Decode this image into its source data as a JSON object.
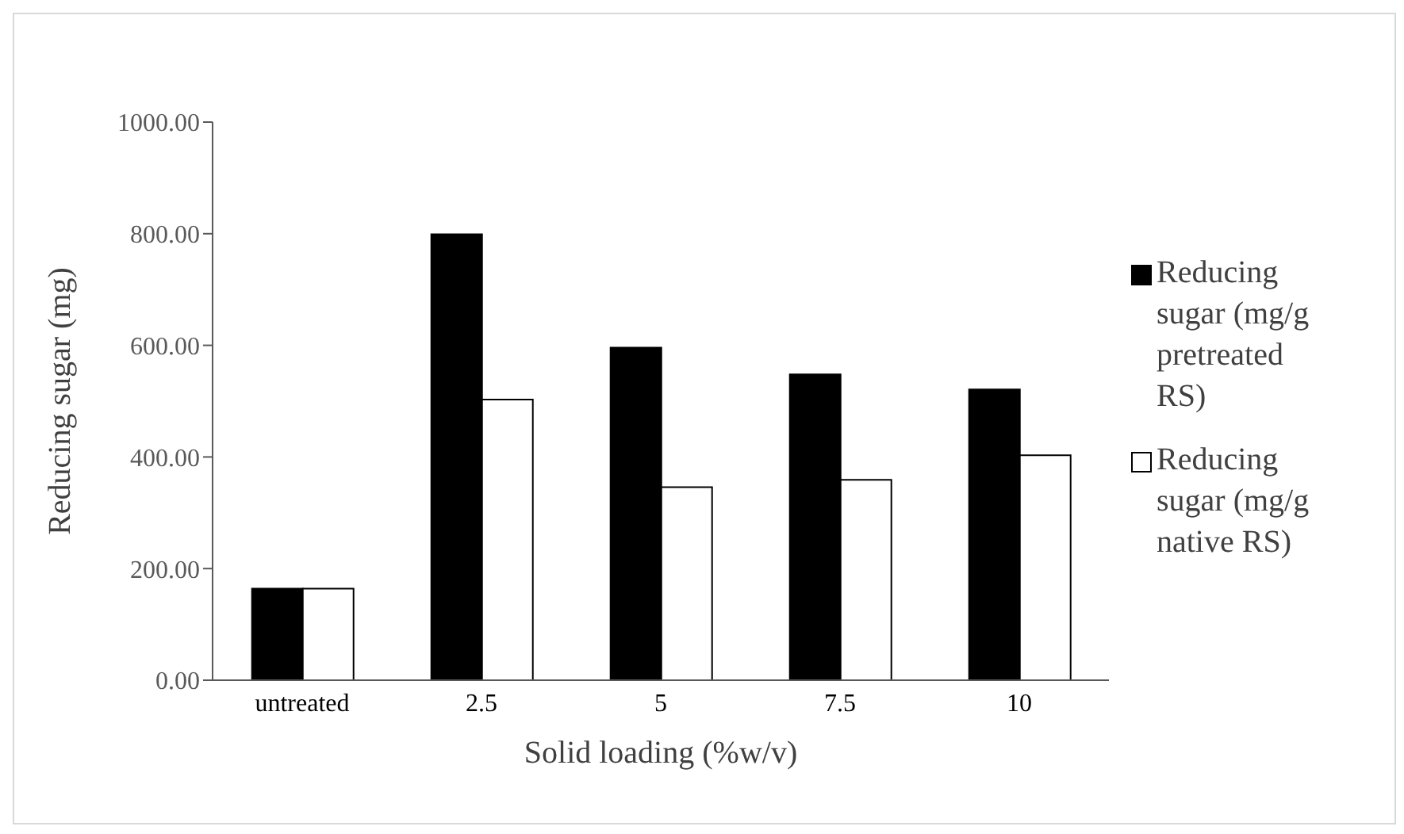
{
  "chart_data": {
    "type": "bar",
    "xlabel": "Solid loading (%w/v)",
    "ylabel": "Reducing sugar (mg)",
    "categories": [
      "untreated",
      "2.5",
      "5",
      "7.5",
      "10"
    ],
    "series": [
      {
        "name": "Reducing sugar (mg/g pretreated RS)",
        "color": "#000000",
        "values": [
          164,
          799,
          596,
          548,
          521
        ]
      },
      {
        "name": "Reducing sugar (mg/g native RS)",
        "color": "#ffffff",
        "values": [
          164,
          503,
          346,
          359,
          403
        ]
      }
    ],
    "ylim": [
      0,
      1000
    ],
    "yticks": [
      {
        "value": 0,
        "label": "0.00"
      },
      {
        "value": 200,
        "label": "200.00"
      },
      {
        "value": 400,
        "label": "400.00"
      },
      {
        "value": 600,
        "label": "600.00"
      },
      {
        "value": 800,
        "label": "800.00"
      },
      {
        "value": 1000,
        "label": "1000.00"
      }
    ],
    "legend": "right"
  }
}
